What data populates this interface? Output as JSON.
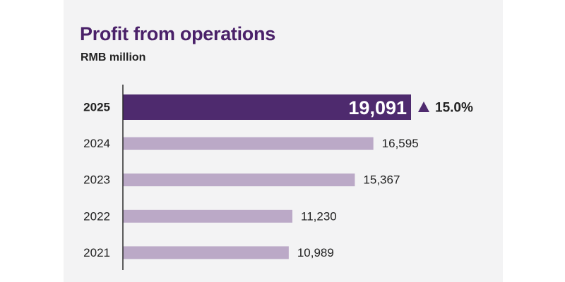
{
  "chart_data": {
    "type": "bar",
    "orientation": "horizontal",
    "title": "Profit from operations",
    "subtitle": "RMB million",
    "categories": [
      "2025",
      "2024",
      "2023",
      "2022",
      "2021"
    ],
    "values": [
      19091,
      16595,
      15367,
      11230,
      10989
    ],
    "value_labels": [
      "19,091",
      "16,595",
      "15,367",
      "11,230",
      "10,989"
    ],
    "highlight_category": "2025",
    "change": {
      "category": "2025",
      "direction": "up",
      "label": "15.0%"
    },
    "xlim": [
      0,
      19091
    ],
    "grid": false,
    "legend": "none"
  },
  "colors": {
    "title": "#4a2169",
    "highlight_bar": "#4e2a6e",
    "bar": "#bba9c7",
    "axis": "#2a2a2a",
    "text": "#222222",
    "background": "#f3f3f4"
  },
  "icons": {
    "change_indicator": "triangle-up-icon"
  }
}
